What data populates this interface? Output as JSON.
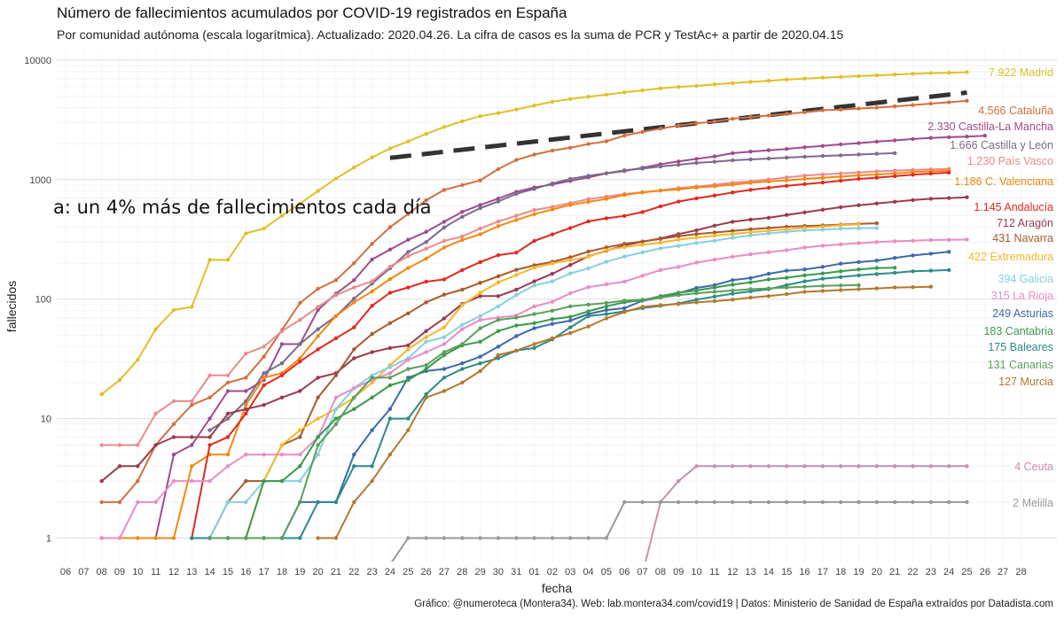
{
  "title": "Número de fallecimientos acumulados por COVID-19 registrados en España",
  "subtitle": "Por comunidad autónoma (escala logarítmica). Actualizado: 2020.04.26. La cifra de casos es la suma de PCR y TestAc+ a partir de 2020.04.15",
  "caption": "Gráfico: @numeroteca (Montera34). Web: lab.montera34.com/covid19 | Datos: Ministerio de Sanidad de España extraídos por Datadista.com",
  "chart_data": {
    "type": "line",
    "title": "Número de fallecimientos acumulados por COVID-19 registrados en España",
    "xlabel": "fecha",
    "ylabel": "fallecidos",
    "yscale": "log",
    "ylim": [
      0.75,
      12000
    ],
    "yticks": [
      1,
      10,
      100,
      1000,
      10000
    ],
    "ytick_labels": [
      "1",
      "10",
      "100",
      "1000",
      "10000"
    ],
    "x_tick_labels": [
      "06",
      "07",
      "08",
      "09",
      "10",
      "11",
      "12",
      "13",
      "14",
      "15",
      "16",
      "17",
      "18",
      "19",
      "20",
      "21",
      "22",
      "23",
      "24",
      "25",
      "26",
      "27",
      "28",
      "29",
      "30",
      "31",
      "01",
      "02",
      "03",
      "04",
      "05",
      "06",
      "07",
      "08",
      "09",
      "10",
      "11",
      "12",
      "13",
      "14",
      "15",
      "16",
      "17",
      "18",
      "19",
      "20",
      "21",
      "22",
      "23",
      "24",
      "25",
      "26",
      "27",
      "28"
    ],
    "x_dates": [
      "2020-03-06",
      "2020-03-07",
      "2020-03-08",
      "2020-03-09",
      "2020-03-10",
      "2020-03-11",
      "2020-03-12",
      "2020-03-13",
      "2020-03-14",
      "2020-03-15",
      "2020-03-16",
      "2020-03-17",
      "2020-03-18",
      "2020-03-19",
      "2020-03-20",
      "2020-03-21",
      "2020-03-22",
      "2020-03-23",
      "2020-03-24",
      "2020-03-25",
      "2020-03-26",
      "2020-03-27",
      "2020-03-28",
      "2020-03-29",
      "2020-03-30",
      "2020-03-31",
      "2020-04-01",
      "2020-04-02",
      "2020-04-03",
      "2020-04-04",
      "2020-04-05",
      "2020-04-06",
      "2020-04-07",
      "2020-04-08",
      "2020-04-09",
      "2020-04-10",
      "2020-04-11",
      "2020-04-12",
      "2020-04-13",
      "2020-04-14",
      "2020-04-15",
      "2020-04-16",
      "2020-04-17",
      "2020-04-18",
      "2020-04-19",
      "2020-04-20",
      "2020-04-21",
      "2020-04-22",
      "2020-04-23",
      "2020-04-24",
      "2020-04-25",
      "2020-04-26",
      "2020-04-27",
      "2020-04-28"
    ],
    "grid": true,
    "legend": "end-of-line labels",
    "annotation": {
      "text": "a: un 4% más de fallecimientos cada día",
      "x": "2020-03-06",
      "y": 800
    },
    "reference_line": {
      "name": "4% más de fallecimientos cada día",
      "color": "#333333",
      "dash": true,
      "x": [
        "2020-03-24",
        "2020-04-25"
      ],
      "y": [
        1520,
        5350
      ]
    },
    "series": [
      {
        "name": "Madrid",
        "color": "#e0c02a",
        "label": "7.922 Madrid",
        "start": "2020-03-08",
        "values": [
          16,
          21,
          31,
          56,
          81,
          86,
          213,
          213,
          355,
          390,
          498,
          628,
          804,
          1021,
          1263,
          1535,
          1825,
          2090,
          2412,
          2757,
          3082,
          3392,
          3603,
          3865,
          4175,
          4483,
          4723,
          4941,
          5136,
          5371,
          5586,
          5800,
          5972,
          6084,
          6278,
          6423,
          6568,
          6724,
          6877,
          7007,
          7132,
          7239,
          7351,
          7460,
          7577,
          7684,
          7790,
          7848,
          7922
        ]
      },
      {
        "name": "Cataluña",
        "color": "#d2703f",
        "label": "4.566 Cataluña",
        "start": "2020-03-08",
        "values": [
          2,
          2,
          3,
          6,
          9,
          13,
          15,
          20,
          22,
          33,
          55,
          93,
          122,
          144,
          200,
          290,
          400,
          516,
          672,
          821,
          899,
          985,
          1226,
          1460,
          1620,
          1751,
          1849,
          1986,
          2093,
          2335,
          2508,
          2672,
          2837,
          2965,
          3060,
          3231,
          3338,
          3442,
          3547,
          3666,
          3812,
          3855,
          3935,
          4004,
          4102,
          4208,
          4328,
          4437,
          4566
        ]
      },
      {
        "name": "Castilla-La Mancha",
        "color": "#a04b8e",
        "label": "2.330 Castilla-La Mancha",
        "start": "2020-03-11",
        "values": [
          1,
          5,
          6,
          10,
          17,
          17,
          21,
          42,
          42,
          81,
          111,
          144,
          215,
          260,
          314,
          365,
          444,
          537,
          614,
          694,
          790,
          860,
          911,
          974,
          1044,
          1126,
          1180,
          1257,
          1345,
          1419,
          1492,
          1563,
          1662,
          1715,
          1763,
          1806,
          1865,
          1913,
          1971,
          2022,
          2078,
          2131,
          2190,
          2234,
          2265,
          2294,
          2330
        ]
      },
      {
        "name": "Castilla y León",
        "color": "#7c6b8a",
        "label": "1.666 Castilla y León",
        "start": "2020-03-14",
        "values": [
          8,
          10,
          14,
          24,
          29,
          42,
          56,
          72,
          101,
          135,
          181,
          248,
          300,
          398,
          488,
          577,
          656,
          761,
          836,
          929,
          1014,
          1077,
          1131,
          1198,
          1236,
          1288,
          1332,
          1380,
          1412,
          1451,
          1476,
          1502,
          1526,
          1553,
          1577,
          1595,
          1620,
          1645,
          1666
        ]
      },
      {
        "name": "País Vasco",
        "color": "#ea8a8f",
        "label": "1.230 País Vasco",
        "start": "2020-03-08",
        "values": [
          6,
          6,
          6,
          11,
          14,
          14,
          23,
          23,
          35,
          40,
          54,
          67,
          86,
          108,
          125,
          141,
          187,
          229,
          264,
          307,
          334,
          390,
          446,
          498,
          558,
          591,
          636,
          688,
          720,
          757,
          785,
          812,
          850,
          875,
          905,
          942,
          968,
          1004,
          1043,
          1082,
          1104,
          1127,
          1146,
          1172,
          1188,
          1205,
          1219,
          1230
        ]
      },
      {
        "name": "C. Valenciana",
        "color": "#f2890f",
        "label": "1.186 C. Valenciana",
        "start": "2020-03-08",
        "values": [
          1,
          1,
          1,
          1,
          1,
          4,
          5,
          5,
          13,
          22,
          24,
          32,
          49,
          72,
          94,
          116,
          147,
          182,
          218,
          270,
          313,
          349,
          408,
          460,
          514,
          563,
          614,
          651,
          690,
          744,
          782,
          808,
          829,
          857,
          880,
          907,
          941,
          964,
          985,
          1013,
          1035,
          1060,
          1086,
          1104,
          1127,
          1156,
          1172,
          1186
        ]
      },
      {
        "name": "Andalucía",
        "color": "#e02a1f",
        "label": "1.145 Andalucía",
        "start": "2020-03-13",
        "values": [
          1,
          6,
          7,
          11,
          19,
          23,
          30,
          38,
          47,
          58,
          88,
          113,
          125,
          140,
          146,
          175,
          204,
          233,
          245,
          307,
          348,
          394,
          447,
          474,
          497,
          535,
          597,
          655,
          698,
          737,
          781,
          820,
          855,
          888,
          917,
          945,
          980,
          1013,
          1038,
          1069,
          1099,
          1123,
          1145
        ]
      },
      {
        "name": "Aragón",
        "color": "#9a3b4f",
        "label": "712 Aragón",
        "start": "2020-03-08",
        "values": [
          3,
          4,
          4,
          6,
          7,
          7,
          7,
          11,
          12,
          13,
          15,
          17,
          22,
          24,
          32,
          36,
          39,
          41,
          54,
          69,
          91,
          106,
          106,
          120,
          141,
          163,
          193,
          228,
          254,
          282,
          302,
          322,
          350,
          377,
          412,
          444,
          463,
          479,
          506,
          532,
          560,
          588,
          611,
          632,
          653,
          674,
          692,
          701,
          712
        ]
      },
      {
        "name": "Navarra",
        "color": "#a85a2e",
        "label": "431 Navarra",
        "start": "2020-03-14",
        "values": [
          1,
          2,
          3,
          3,
          6,
          7,
          15,
          23,
          38,
          51,
          63,
          76,
          94,
          109,
          120,
          137,
          155,
          176,
          192,
          205,
          224,
          250,
          271,
          290,
          304,
          319,
          336,
          350,
          361,
          372,
          384,
          394,
          403,
          409,
          414,
          420,
          426,
          431
        ]
      },
      {
        "name": "Extremadura",
        "color": "#f8b72a",
        "label": "422 Extremadura",
        "start": "2020-03-13",
        "values": [
          1,
          1,
          1,
          1,
          3,
          6,
          8,
          10,
          12,
          15,
          20,
          28,
          38,
          48,
          58,
          89,
          113,
          138,
          159,
          183,
          199,
          212,
          226,
          257,
          273,
          285,
          296,
          315,
          327,
          340,
          351,
          362,
          373,
          383,
          395,
          405,
          416,
          422
        ]
      },
      {
        "name": "Galicia",
        "color": "#86cfe3",
        "label": "394 Galicia",
        "start": "2020-03-14",
        "values": [
          1,
          2,
          2,
          3,
          3,
          3,
          5,
          12,
          18,
          23,
          27,
          32,
          44,
          48,
          61,
          72,
          87,
          108,
          130,
          141,
          164,
          181,
          205,
          227,
          246,
          266,
          279,
          295,
          308,
          326,
          342,
          355,
          366,
          376,
          381,
          388,
          391,
          394
        ]
      },
      {
        "name": "La Rioja",
        "color": "#e98dc4",
        "label": "315 La Rioja",
        "start": "2020-03-08",
        "values": [
          1,
          1,
          2,
          2,
          3,
          3,
          3,
          4,
          5,
          5,
          5,
          5,
          7,
          15,
          18,
          21,
          24,
          31,
          36,
          42,
          56,
          67,
          70,
          73,
          87,
          95,
          112,
          126,
          133,
          140,
          157,
          175,
          186,
          202,
          214,
          226,
          237,
          247,
          257,
          270,
          280,
          287,
          294,
          300,
          305,
          308,
          312,
          314,
          315
        ]
      },
      {
        "name": "Asturias",
        "color": "#3d6aa8",
        "label": "249 Asturias",
        "start": "2020-03-13",
        "values": [
          1,
          1,
          1,
          1,
          1,
          1,
          2,
          2,
          2,
          5,
          8,
          12,
          22,
          25,
          26,
          29,
          33,
          40,
          49,
          57,
          62,
          66,
          75,
          81,
          84,
          97,
          103,
          112,
          124,
          131,
          144,
          150,
          163,
          173,
          177,
          186,
          198,
          204,
          210,
          221,
          232,
          240,
          249
        ]
      },
      {
        "name": "Cantabria",
        "color": "#3a9a4a",
        "label": "183 Cantabria",
        "start": "2020-03-16",
        "values": [
          1,
          3,
          3,
          4,
          7,
          10,
          12,
          15,
          19,
          21,
          26,
          34,
          41,
          44,
          54,
          60,
          63,
          68,
          71,
          79,
          87,
          94,
          98,
          106,
          113,
          118,
          125,
          132,
          138,
          146,
          151,
          158,
          164,
          171,
          177,
          182,
          183
        ]
      },
      {
        "name": "Baleares",
        "color": "#2d8a8a",
        "label": "175 Baleares",
        "start": "2020-03-13",
        "values": [
          1,
          1,
          1,
          1,
          1,
          1,
          1,
          2,
          2,
          4,
          4,
          10,
          10,
          16,
          22,
          26,
          29,
          32,
          37,
          39,
          46,
          58,
          72,
          75,
          79,
          84,
          88,
          92,
          99,
          105,
          111,
          116,
          121,
          131,
          141,
          148,
          153,
          158,
          162,
          166,
          171,
          173,
          175
        ]
      },
      {
        "name": "Canarias",
        "color": "#5aa05c",
        "label": "131 Canarias",
        "start": "2020-03-14",
        "values": [
          1,
          1,
          1,
          1,
          1,
          2,
          6,
          9,
          15,
          22,
          22,
          26,
          28,
          36,
          42,
          57,
          67,
          70,
          75,
          80,
          87,
          90,
          93,
          97,
          99,
          103,
          108,
          112,
          115,
          118,
          121,
          123,
          125,
          127,
          129,
          130,
          131
        ]
      },
      {
        "name": "Murcia",
        "color": "#b5782f",
        "label": "127 Murcia",
        "start": "2020-03-20",
        "values": [
          1,
          1,
          2,
          3,
          5,
          8,
          15,
          17,
          20,
          25,
          34,
          37,
          42,
          47,
          52,
          59,
          69,
          78,
          86,
          89,
          91,
          94,
          96,
          99,
          103,
          106,
          110,
          115,
          117,
          119,
          121,
          123,
          125,
          126,
          127
        ]
      },
      {
        "name": "Ceuta",
        "color": "#c98faf",
        "label": "4 Ceuta",
        "start": "2020-03-25",
        "values": [
          0.5,
          0.5,
          0.5,
          0.5,
          0.5,
          0.5,
          0.5,
          0.5,
          0.5,
          0.5,
          0.5,
          0.5,
          0.5,
          0.5,
          2,
          3,
          4,
          4,
          4,
          4,
          4,
          4,
          4,
          4,
          4,
          4,
          4,
          4,
          4,
          4,
          4,
          4
        ]
      },
      {
        "name": "Melilla",
        "color": "#999999",
        "label": "2 Melilla",
        "start": "2020-03-24",
        "values": [
          0.6,
          1,
          1,
          1,
          1,
          1,
          1,
          1,
          1,
          1,
          1,
          1,
          1,
          2,
          2,
          2,
          2,
          2,
          2,
          2,
          2,
          2,
          2,
          2,
          2,
          2,
          2,
          2,
          2,
          2,
          2,
          2,
          2
        ]
      }
    ]
  }
}
